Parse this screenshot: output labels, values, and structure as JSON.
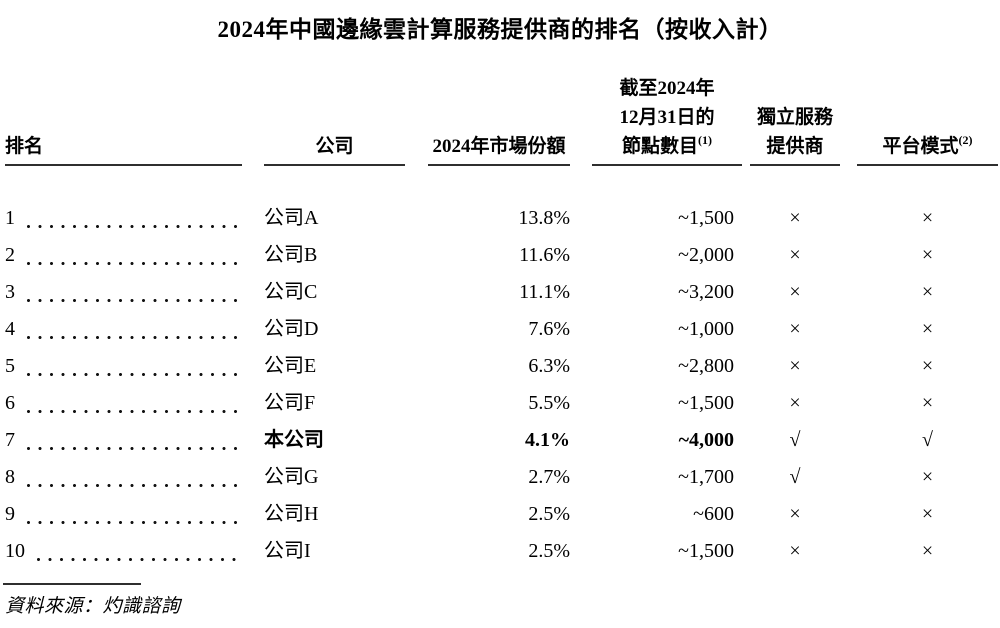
{
  "title": "2024年中國邊緣雲計算服務提供商的排名（按收入計）",
  "table": {
    "headers": {
      "rank": "排名",
      "company": "公司",
      "market_share": "2024年市場份額",
      "nodes_line1": "截至2024年",
      "nodes_line2": "12月31日的",
      "nodes_line3": "節點數目",
      "nodes_footnote": "(1)",
      "independent_line1": "獨立服務",
      "independent_line2": "提供商",
      "platform": "平台模式",
      "platform_footnote": "(2)"
    },
    "rows": [
      {
        "rank": "1",
        "company": "公司A",
        "market_share": "13.8%",
        "nodes": "~1,500",
        "independent": "×",
        "platform": "×",
        "bold": false
      },
      {
        "rank": "2",
        "company": "公司B",
        "market_share": "11.6%",
        "nodes": "~2,000",
        "independent": "×",
        "platform": "×",
        "bold": false
      },
      {
        "rank": "3",
        "company": "公司C",
        "market_share": "11.1%",
        "nodes": "~3,200",
        "independent": "×",
        "platform": "×",
        "bold": false
      },
      {
        "rank": "4",
        "company": "公司D",
        "market_share": "7.6%",
        "nodes": "~1,000",
        "independent": "×",
        "platform": "×",
        "bold": false
      },
      {
        "rank": "5",
        "company": "公司E",
        "market_share": "6.3%",
        "nodes": "~2,800",
        "independent": "×",
        "platform": "×",
        "bold": false
      },
      {
        "rank": "6",
        "company": "公司F",
        "market_share": "5.5%",
        "nodes": "~1,500",
        "independent": "×",
        "platform": "×",
        "bold": false
      },
      {
        "rank": "7",
        "company": "本公司",
        "market_share": "4.1%",
        "nodes": "~4,000",
        "independent": "√",
        "platform": "√",
        "bold": true
      },
      {
        "rank": "8",
        "company": "公司G",
        "market_share": "2.7%",
        "nodes": "~1,700",
        "independent": "√",
        "platform": "×",
        "bold": false
      },
      {
        "rank": "9",
        "company": "公司H",
        "market_share": "2.5%",
        "nodes": "~600",
        "independent": "×",
        "platform": "×",
        "bold": false
      },
      {
        "rank": "10",
        "company": "公司I",
        "market_share": "2.5%",
        "nodes": "~1,500",
        "independent": "×",
        "platform": "×",
        "bold": false
      }
    ]
  },
  "footer": {
    "source": "資料來源：灼識諮詢"
  }
}
